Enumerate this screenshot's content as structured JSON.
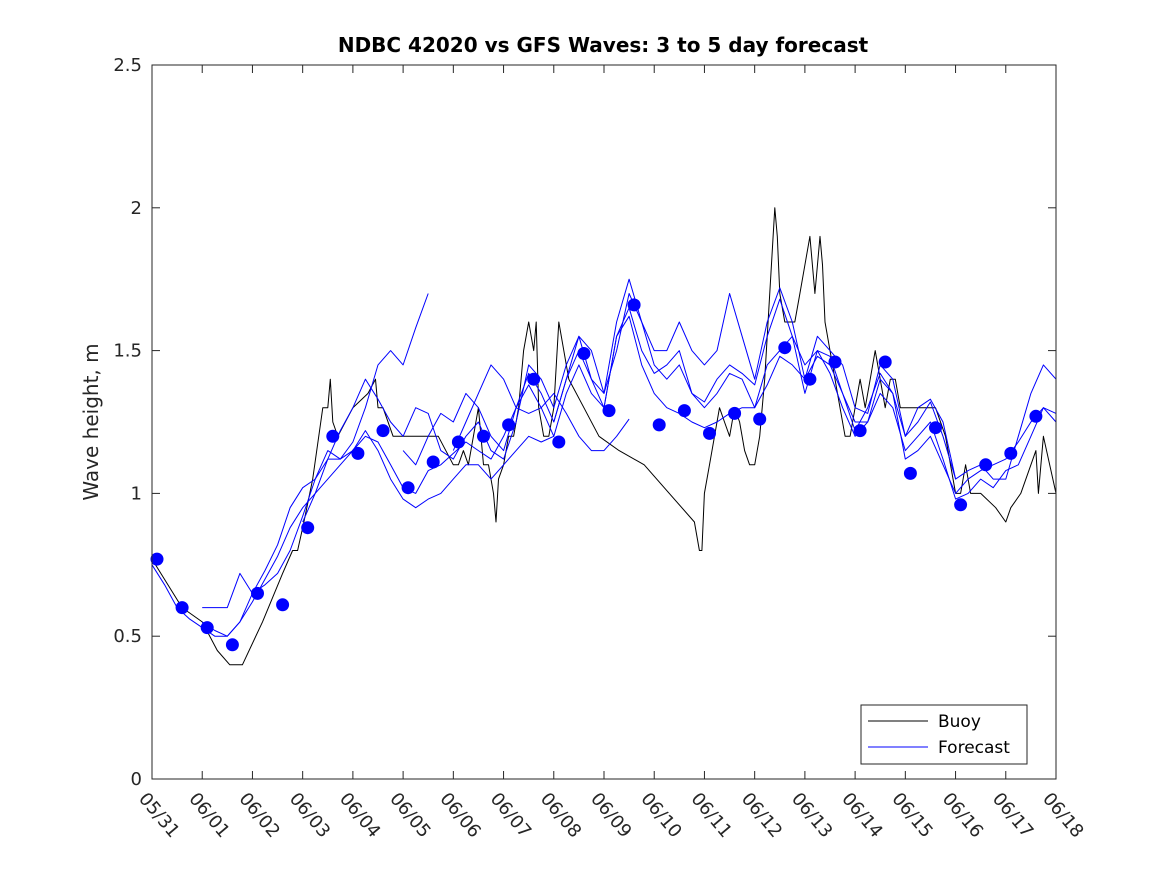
{
  "chart_data": {
    "type": "line",
    "title": "NDBC 42020 vs GFS Waves: 3 to 5 day forecast",
    "ylabel": "Wave height, m",
    "xlabel": "",
    "xlim": [
      "05/31",
      "06/18"
    ],
    "ylim": [
      0,
      2.5
    ],
    "yticks": [
      "0",
      "0.5",
      "1",
      "1.5",
      "2",
      "2.5"
    ],
    "xticks": [
      "05/31",
      "06/01",
      "06/02",
      "06/03",
      "06/04",
      "06/05",
      "06/06",
      "06/07",
      "06/08",
      "06/09",
      "06/10",
      "06/11",
      "06/12",
      "06/13",
      "06/14",
      "06/15",
      "06/16",
      "06/17",
      "06/18"
    ],
    "grid": false,
    "legend": {
      "placement": "bottom-right",
      "entries": [
        "Buoy",
        "Forecast"
      ]
    },
    "colors": {
      "buoy": "#000000",
      "forecast": "#0000ff",
      "markers": "#0000ff"
    },
    "x_units": "days since 05/31 00:00",
    "series": [
      {
        "name": "Buoy",
        "x": [
          0.0,
          0.6,
          1.0,
          1.3,
          1.55,
          1.8,
          2.2,
          2.6,
          2.8,
          2.9,
          3.0,
          3.2,
          3.4,
          3.5,
          3.55,
          3.6,
          3.7,
          4.0,
          4.3,
          4.45,
          4.5,
          4.6,
          4.8,
          5.0,
          5.3,
          5.7,
          6.0,
          6.1,
          6.2,
          6.3,
          6.4,
          6.5,
          6.6,
          6.7,
          6.8,
          6.85,
          6.9,
          7.0,
          7.1,
          7.2,
          7.3,
          7.4,
          7.5,
          7.6,
          7.65,
          7.7,
          7.8,
          7.9,
          8.0,
          8.1,
          8.2,
          8.3,
          8.6,
          8.9,
          9.3,
          9.8,
          10.3,
          10.8,
          10.9,
          10.95,
          11.0,
          11.1,
          11.2,
          11.3,
          11.4,
          11.5,
          11.6,
          11.7,
          11.8,
          11.9,
          12.0,
          12.1,
          12.2,
          12.4,
          12.45,
          12.5,
          12.6,
          12.8,
          12.9,
          13.0,
          13.1,
          13.15,
          13.2,
          13.3,
          13.35,
          13.4,
          13.5,
          13.6,
          13.7,
          13.8,
          13.9,
          14.0,
          14.1,
          14.2,
          14.3,
          14.4,
          14.5,
          14.6,
          14.7,
          14.8,
          14.9,
          15.0,
          15.3,
          15.6,
          15.8,
          15.9,
          16.0,
          16.1,
          16.2,
          16.3,
          16.5,
          16.8,
          17.0,
          17.1,
          17.3,
          17.5,
          17.6,
          17.65,
          17.7,
          17.75,
          18.0
        ],
        "y": [
          0.77,
          0.6,
          0.55,
          0.45,
          0.4,
          0.4,
          0.55,
          0.72,
          0.8,
          0.8,
          0.88,
          1.05,
          1.3,
          1.3,
          1.4,
          1.25,
          1.2,
          1.3,
          1.35,
          1.4,
          1.3,
          1.3,
          1.2,
          1.2,
          1.2,
          1.2,
          1.1,
          1.1,
          1.15,
          1.1,
          1.2,
          1.3,
          1.1,
          1.1,
          1.0,
          0.9,
          1.05,
          1.1,
          1.2,
          1.2,
          1.3,
          1.5,
          1.6,
          1.5,
          1.6,
          1.3,
          1.2,
          1.2,
          1.3,
          1.6,
          1.5,
          1.4,
          1.3,
          1.2,
          1.15,
          1.1,
          1.0,
          0.9,
          0.8,
          0.8,
          1.0,
          1.1,
          1.2,
          1.3,
          1.25,
          1.2,
          1.3,
          1.25,
          1.15,
          1.1,
          1.1,
          1.2,
          1.4,
          2.0,
          1.9,
          1.7,
          1.6,
          1.6,
          1.7,
          1.8,
          1.9,
          1.8,
          1.7,
          1.9,
          1.8,
          1.6,
          1.5,
          1.4,
          1.3,
          1.2,
          1.2,
          1.3,
          1.4,
          1.3,
          1.4,
          1.5,
          1.4,
          1.3,
          1.4,
          1.4,
          1.3,
          1.3,
          1.3,
          1.3,
          1.2,
          1.1,
          1.0,
          1.0,
          1.1,
          1.0,
          1.0,
          0.95,
          0.9,
          0.95,
          1.0,
          1.1,
          1.15,
          1.0,
          1.1,
          1.2,
          1.0
        ]
      },
      {
        "name": "Forecast",
        "x": [
          0.0,
          0.25,
          0.5,
          0.75,
          1.0,
          1.25,
          1.5,
          1.75,
          2.0,
          2.25,
          2.5,
          2.75,
          3.0,
          3.25,
          3.5,
          3.75,
          4.0,
          4.25,
          4.5,
          4.75,
          5.0,
          5.25,
          5.5,
          5.75,
          6.0,
          6.25,
          6.5,
          6.75,
          7.0,
          7.25,
          7.5,
          7.75,
          8.0,
          8.25,
          8.5,
          8.75,
          9.0,
          9.25,
          9.5,
          9.75,
          10.0,
          10.25,
          10.5,
          10.75,
          11.0,
          11.25,
          11.5,
          11.75,
          12.0,
          12.25,
          12.5,
          12.75,
          13.0,
          13.25,
          13.5,
          13.75,
          14.0,
          14.25,
          14.5,
          14.75,
          15.0,
          15.25,
          15.5,
          15.75,
          16.0,
          16.25,
          16.5,
          16.75,
          17.0,
          17.25,
          17.5,
          17.75,
          18.0
        ],
        "y": [
          0.75,
          0.68,
          0.6,
          0.56,
          0.53,
          0.5,
          0.5,
          0.55,
          0.65,
          0.68,
          0.72,
          0.8,
          0.92,
          1.05,
          1.15,
          1.12,
          1.15,
          1.2,
          1.18,
          1.1,
          1.02,
          1.0,
          1.08,
          1.1,
          1.14,
          1.18,
          1.15,
          1.12,
          1.2,
          1.3,
          1.38,
          1.3,
          1.2,
          1.35,
          1.45,
          1.35,
          1.3,
          1.55,
          1.62,
          1.45,
          1.35,
          1.3,
          1.28,
          1.25,
          1.23,
          1.25,
          1.28,
          1.3,
          1.3,
          1.38,
          1.48,
          1.45,
          1.4,
          1.48,
          1.45,
          1.35,
          1.25,
          1.25,
          1.4,
          1.35,
          1.12,
          1.15,
          1.2,
          1.1,
          1.0,
          1.05,
          1.08,
          1.1,
          1.12,
          1.18,
          1.25,
          1.3,
          1.25
        ]
      },
      {
        "name": "Forecast",
        "x": [
          1.0,
          1.25,
          1.5,
          1.75,
          2.0,
          2.25,
          2.5,
          2.75,
          3.0,
          3.25,
          3.5,
          3.75,
          4.0,
          4.25,
          4.5,
          4.75,
          5.0,
          5.25,
          5.5
        ],
        "y": [
          0.6,
          0.6,
          0.6,
          0.72,
          0.65,
          0.73,
          0.82,
          0.95,
          1.02,
          1.05,
          1.12,
          1.12,
          1.18,
          1.3,
          1.45,
          1.5,
          1.45,
          1.58,
          1.7
        ]
      },
      {
        "name": "Forecast",
        "x": [
          3.0,
          3.25,
          3.5,
          3.75,
          4.0,
          4.25,
          4.5,
          4.75,
          5.0,
          5.25,
          5.5,
          5.75,
          6.0,
          6.25,
          6.5,
          6.75,
          7.0,
          7.25,
          7.5,
          7.75,
          8.0,
          8.25,
          8.5,
          8.75,
          9.0,
          9.25,
          9.5,
          9.75,
          10.0,
          10.25,
          10.5,
          10.75,
          11.0,
          11.25,
          11.5,
          11.75,
          12.0,
          12.25,
          12.5,
          12.75,
          13.0,
          13.25,
          13.5,
          13.75,
          14.0,
          14.25,
          14.5,
          14.75,
          15.0,
          15.25,
          15.5,
          15.75,
          16.0,
          16.25,
          16.5,
          16.75,
          17.0,
          17.25,
          17.5,
          17.75,
          18.0
        ],
        "y": [
          0.9,
          1.0,
          1.12,
          1.22,
          1.3,
          1.4,
          1.33,
          1.25,
          1.2,
          1.3,
          1.28,
          1.15,
          1.12,
          1.2,
          1.25,
          1.15,
          1.12,
          1.25,
          1.45,
          1.4,
          1.3,
          1.45,
          1.55,
          1.4,
          1.35,
          1.6,
          1.75,
          1.6,
          1.45,
          1.4,
          1.45,
          1.35,
          1.32,
          1.4,
          1.45,
          1.42,
          1.38,
          1.55,
          1.68,
          1.55,
          1.35,
          1.5,
          1.48,
          1.35,
          1.22,
          1.3,
          1.42,
          1.35,
          1.2,
          1.25,
          1.32,
          1.2,
          1.05,
          1.08,
          1.1,
          1.05,
          1.05,
          1.2,
          1.35,
          1.45,
          1.4
        ]
      },
      {
        "name": "Forecast",
        "x": [
          5.0,
          5.25,
          5.5,
          5.75,
          6.0,
          6.25,
          6.5,
          6.75,
          7.0,
          7.25,
          7.5,
          7.75,
          8.0,
          8.25,
          8.5,
          8.75,
          9.0,
          9.25,
          9.5,
          9.75,
          10.0,
          10.25,
          10.5,
          10.75,
          11.0,
          11.25,
          11.5,
          11.75,
          12.0,
          12.25,
          12.5,
          12.75,
          13.0,
          13.25,
          13.5,
          13.75,
          14.0,
          14.25,
          14.5,
          14.75,
          15.0,
          15.25,
          15.5,
          15.75,
          16.0,
          16.25,
          16.5,
          16.75,
          17.0,
          17.25,
          17.5,
          17.75,
          18.0
        ],
        "y": [
          1.15,
          1.1,
          1.2,
          1.28,
          1.25,
          1.35,
          1.3,
          1.2,
          1.15,
          1.3,
          1.42,
          1.35,
          1.25,
          1.4,
          1.5,
          1.4,
          1.3,
          1.55,
          1.65,
          1.5,
          1.42,
          1.45,
          1.5,
          1.35,
          1.3,
          1.35,
          1.42,
          1.4,
          1.3,
          1.45,
          1.5,
          1.55,
          1.45,
          1.5,
          1.42,
          1.3,
          1.2,
          1.25,
          1.35,
          1.3,
          1.15,
          1.2,
          1.25,
          1.12,
          0.98,
          1.0,
          1.05,
          1.02,
          1.08,
          1.1,
          1.2,
          1.3,
          1.28
        ]
      },
      {
        "name": "Forecast",
        "x": [
          8.0,
          8.25,
          8.5,
          8.75,
          9.0,
          9.25,
          9.5,
          9.75,
          10.0,
          10.25,
          10.5,
          10.75,
          11.0,
          11.25,
          11.5,
          11.75,
          12.0,
          12.25,
          12.5,
          12.75,
          13.0,
          13.25,
          13.5,
          13.75,
          14.0,
          14.25,
          14.5,
          14.75,
          15.0,
          15.25,
          15.5,
          15.75,
          16.0
        ],
        "y": [
          1.25,
          1.4,
          1.55,
          1.5,
          1.35,
          1.5,
          1.7,
          1.6,
          1.5,
          1.5,
          1.6,
          1.5,
          1.45,
          1.5,
          1.7,
          1.55,
          1.4,
          1.6,
          1.72,
          1.6,
          1.4,
          1.55,
          1.5,
          1.45,
          1.3,
          1.28,
          1.45,
          1.4,
          1.2,
          1.3,
          1.33,
          1.25,
          1.05
        ]
      },
      {
        "name": "Forecast",
        "x": [
          6.0,
          6.25,
          6.5,
          6.75,
          7.0,
          7.25,
          7.5,
          7.75,
          8.0,
          8.25,
          8.5,
          8.75,
          9.0,
          9.25,
          9.5
        ],
        "y": [
          1.15,
          1.25,
          1.35,
          1.45,
          1.4,
          1.3,
          1.28,
          1.3,
          1.35,
          1.28,
          1.2,
          1.15,
          1.15,
          1.2,
          1.26
        ]
      },
      {
        "name": "Forecast",
        "x": [
          1.0,
          1.25,
          1.5,
          1.75,
          2.0,
          2.25,
          2.5,
          2.75,
          3.0,
          3.25,
          3.5,
          3.75,
          4.0,
          4.25,
          4.5,
          4.75,
          5.0,
          5.25,
          5.5,
          5.75,
          6.0,
          6.25,
          6.5,
          6.75,
          7.0,
          7.25,
          7.5,
          7.75,
          8.0
        ],
        "y": [
          0.55,
          0.52,
          0.5,
          0.55,
          0.62,
          0.7,
          0.78,
          0.88,
          0.95,
          1.0,
          1.05,
          1.1,
          1.15,
          1.22,
          1.15,
          1.05,
          0.98,
          0.95,
          0.98,
          1.0,
          1.05,
          1.1,
          1.1,
          1.05,
          1.1,
          1.15,
          1.2,
          1.18,
          1.2
        ]
      }
    ],
    "markers": {
      "x": [
        0.1,
        0.6,
        1.1,
        1.6,
        2.1,
        2.6,
        3.1,
        3.6,
        4.1,
        4.6,
        5.1,
        5.6,
        6.1,
        6.6,
        7.1,
        7.6,
        8.1,
        8.6,
        9.1,
        9.6,
        10.1,
        10.6,
        11.1,
        11.6,
        12.1,
        12.6,
        13.1,
        13.6,
        14.1,
        14.6,
        15.1,
        15.6,
        16.1,
        16.6,
        17.1,
        17.6
      ],
      "y": [
        0.77,
        0.6,
        0.53,
        0.47,
        0.65,
        0.61,
        0.88,
        1.2,
        1.14,
        1.22,
        1.02,
        1.11,
        1.18,
        1.2,
        1.24,
        1.4,
        1.18,
        1.49,
        1.29,
        1.66,
        1.24,
        1.29,
        1.21,
        1.28,
        1.26,
        1.51,
        1.4,
        1.46,
        1.22,
        1.46,
        1.07,
        1.23,
        0.96,
        1.1,
        1.14,
        1.27
      ]
    }
  }
}
